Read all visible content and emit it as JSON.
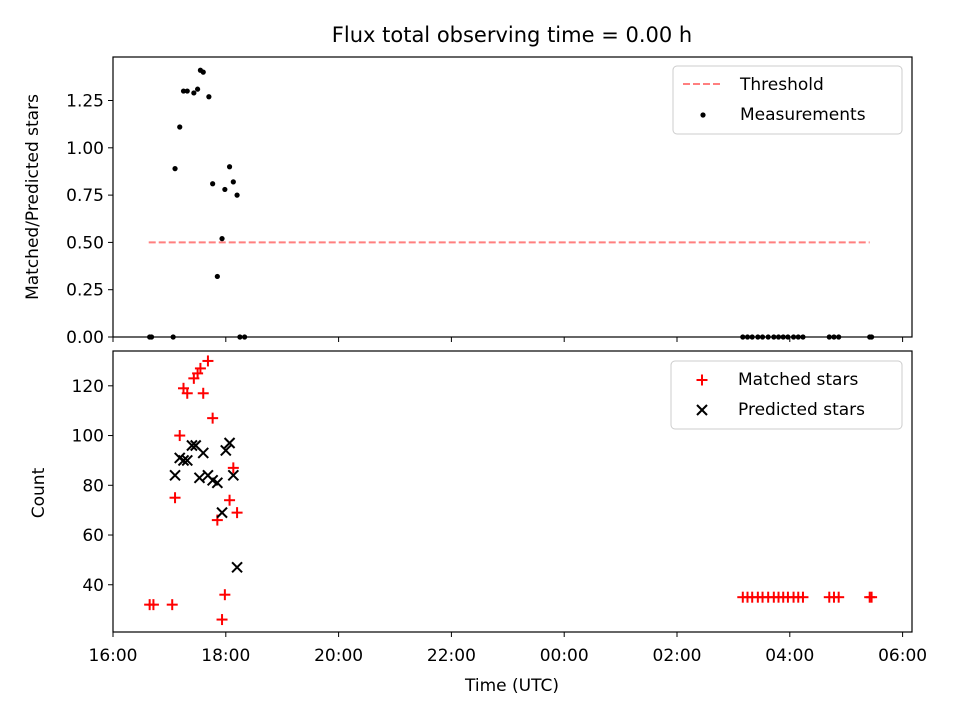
{
  "figure": {
    "title": "Flux total observing time = 0.00 h"
  },
  "chart_data": [
    {
      "type": "scatter",
      "ylabel": "Matched/Predicted stars",
      "xlim": [
        "16:00",
        "06:10"
      ],
      "ylim": [
        0,
        1.48
      ],
      "yticks": [
        "0.00",
        "0.25",
        "0.50",
        "0.75",
        "1.00",
        "1.25"
      ],
      "legend_position": "top-right",
      "threshold": {
        "name": "Threshold",
        "value": 0.5,
        "x_start": "16:38",
        "x_end": "05:25",
        "color": "#ff7f7f"
      },
      "series": [
        {
          "name": "Measurements",
          "color": "#000000",
          "x": [
            "16:39",
            "16:41",
            "17:04",
            "17:06",
            "17:11",
            "17:15",
            "17:19",
            "17:26",
            "17:30",
            "17:33",
            "17:36",
            "17:42",
            "17:46",
            "17:51",
            "17:56",
            "17:59",
            "18:04",
            "18:08",
            "18:12",
            "18:15",
            "18:20",
            "03:10",
            "03:15",
            "03:20",
            "03:26",
            "03:31",
            "03:37",
            "03:43",
            "03:48",
            "03:53",
            "03:58",
            "04:04",
            "04:09",
            "04:14",
            "04:42",
            "04:47",
            "04:52",
            "05:25",
            "05:27"
          ],
          "y": [
            0,
            0,
            0,
            0.89,
            1.11,
            1.3,
            1.3,
            1.29,
            1.31,
            1.41,
            1.4,
            1.27,
            0.81,
            0.32,
            0.52,
            0.78,
            0.9,
            0.82,
            0.75,
            0.0,
            0.0,
            0,
            0,
            0,
            0,
            0,
            0,
            0,
            0,
            0,
            0,
            0,
            0,
            0,
            0,
            0,
            0,
            0,
            0
          ]
        }
      ]
    },
    {
      "type": "scatter",
      "xlabel": "Time (UTC)",
      "ylabel": "Count",
      "xlim": [
        "16:00",
        "06:10"
      ],
      "ylim": [
        21,
        134
      ],
      "yticks": [
        "40",
        "60",
        "80",
        "100",
        "120"
      ],
      "xticks": [
        "16:00",
        "18:00",
        "20:00",
        "22:00",
        "00:00",
        "02:00",
        "04:00",
        "06:00"
      ],
      "legend_position": "top-right",
      "series": [
        {
          "name": "Matched stars",
          "color": "#ff0000",
          "x": [
            "16:39",
            "16:43",
            "17:03",
            "17:06",
            "17:11",
            "17:15",
            "17:19",
            "17:26",
            "17:30",
            "17:33",
            "17:36",
            "17:41",
            "17:46",
            "17:51",
            "17:56",
            "17:59",
            "18:04",
            "18:08",
            "18:12",
            "03:10",
            "03:15",
            "03:20",
            "03:26",
            "03:31",
            "03:37",
            "03:43",
            "03:48",
            "03:53",
            "03:58",
            "04:04",
            "04:09",
            "04:14",
            "04:42",
            "04:47",
            "04:52",
            "05:25",
            "05:27"
          ],
          "y": [
            32,
            32,
            32,
            75,
            100,
            119,
            117,
            123,
            125,
            127,
            117,
            130,
            107,
            66,
            26,
            36,
            74,
            87,
            69,
            35,
            35,
            35,
            35,
            35,
            35,
            35,
            35,
            35,
            35,
            35,
            35,
            35,
            35,
            35,
            35,
            35,
            35
          ]
        },
        {
          "name": "Predicted stars",
          "color": "#000000",
          "x": [
            "17:06",
            "17:11",
            "17:15",
            "17:19",
            "17:24",
            "17:28",
            "17:32",
            "17:36",
            "17:41",
            "17:46",
            "17:51",
            "17:56",
            "18:00",
            "18:04",
            "18:08",
            "18:12"
          ],
          "y": [
            84,
            91,
            90,
            90,
            96,
            96,
            83,
            93,
            84,
            82,
            81,
            69,
            94,
            97,
            84,
            47
          ]
        }
      ]
    }
  ]
}
